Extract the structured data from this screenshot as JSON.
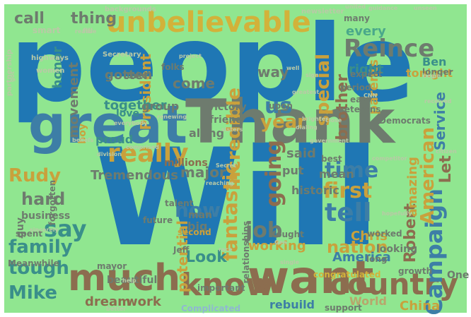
{
  "colors": {
    "background": "#90e690",
    "frame": "#ffffff",
    "blue": "#1f77b4",
    "steel": "#3d7ea6",
    "teal": "#3a8f8a",
    "sea": "#4aa88a",
    "brown": "#8c6d4f",
    "gold": "#d2b23a",
    "ochre": "#c9a13c",
    "grey": "#6e7b6e",
    "tan": "#b8a66c",
    "pale": "#b9c9a6",
    "sky": "#8fb8d0"
  },
  "words": [
    {
      "text": "people",
      "color": "blue"
    },
    {
      "text": "Will",
      "color": "blue"
    },
    {
      "text": "Thank",
      "color": "grey"
    },
    {
      "text": "great",
      "color": "steel"
    },
    {
      "text": "unbelievable",
      "color": "gold"
    },
    {
      "text": "want",
      "color": "brown"
    },
    {
      "text": "much",
      "color": "brown"
    },
    {
      "text": "country",
      "color": "brown"
    },
    {
      "text": "know",
      "color": "brown"
    },
    {
      "text": "Reince",
      "color": "grey"
    },
    {
      "text": "really",
      "color": "ochre"
    },
    {
      "text": "going",
      "color": "brown"
    },
    {
      "text": "tell",
      "color": "steel"
    },
    {
      "text": "time",
      "color": "steel"
    },
    {
      "text": "first",
      "color": "ochre"
    },
    {
      "text": "job",
      "color": "grey"
    },
    {
      "text": "say",
      "color": "teal"
    },
    {
      "text": "family",
      "color": "teal"
    },
    {
      "text": "tough",
      "color": "teal"
    },
    {
      "text": "Mike",
      "color": "teal"
    },
    {
      "text": "hard",
      "color": "grey"
    },
    {
      "text": "us",
      "color": "steel"
    },
    {
      "text": "now",
      "color": "steel"
    },
    {
      "text": "Rudy",
      "color": "ochre"
    },
    {
      "text": "year",
      "color": "ochre"
    },
    {
      "text": "fantastic",
      "color": "ochre"
    },
    {
      "text": "incredible",
      "color": "ochre"
    },
    {
      "text": "Campaign",
      "color": "steel"
    },
    {
      "text": "American",
      "color": "ochre"
    },
    {
      "text": "Robert",
      "color": "brown"
    },
    {
      "text": "nation",
      "color": "ochre"
    },
    {
      "text": "World",
      "color": "tan"
    },
    {
      "text": "China",
      "color": "ochre"
    },
    {
      "text": "Look",
      "color": "teal"
    },
    {
      "text": "America",
      "color": "steel"
    },
    {
      "text": "special",
      "color": "ochre"
    },
    {
      "text": "Service",
      "color": "steel"
    },
    {
      "text": "Let",
      "color": "brown"
    },
    {
      "text": "amazing",
      "color": "ochre"
    },
    {
      "text": "brother",
      "color": "brown"
    },
    {
      "text": "movement",
      "color": "grey"
    },
    {
      "text": "President",
      "color": "ochre"
    },
    {
      "text": "honor",
      "color": "teal"
    },
    {
      "text": "thing",
      "color": "grey"
    },
    {
      "text": "call",
      "color": "grey"
    },
    {
      "text": "come",
      "color": "grey"
    },
    {
      "text": "gotten",
      "color": "grey"
    },
    {
      "text": "way",
      "color": "grey"
    },
    {
      "text": "every",
      "color": "sea"
    },
    {
      "text": "parents",
      "color": "ochre"
    },
    {
      "text": "tonight",
      "color": "ochre"
    },
    {
      "text": "right",
      "color": "teal"
    },
    {
      "text": "Ben",
      "color": "teal"
    },
    {
      "text": "together",
      "color": "teal"
    },
    {
      "text": "major",
      "color": "grey"
    },
    {
      "text": "Tremendous",
      "color": "grey"
    },
    {
      "text": "said",
      "color": "grey"
    },
    {
      "text": "mean",
      "color": "grey"
    },
    {
      "text": "put",
      "color": "grey"
    },
    {
      "text": "historic",
      "color": "grey"
    },
    {
      "text": "Chris",
      "color": "ochre"
    },
    {
      "text": "potential",
      "color": "ochre"
    },
    {
      "text": "working",
      "color": "ochre"
    },
    {
      "text": "dream",
      "color": "brown"
    },
    {
      "text": "work",
      "color": "brown"
    },
    {
      "text": "rebuild",
      "color": "steel"
    },
    {
      "text": "Complicated",
      "color": "sky"
    },
    {
      "text": "business",
      "color": "grey"
    },
    {
      "text": "beautiful",
      "color": "grey"
    },
    {
      "text": "Meanwhile",
      "color": "grey"
    },
    {
      "text": "congratulated",
      "color": "gold"
    },
    {
      "text": "growth",
      "color": "grey"
    },
    {
      "text": "One",
      "color": "grey"
    },
    {
      "text": "important",
      "color": "grey"
    },
    {
      "text": "support",
      "color": "grey"
    },
    {
      "text": "proud",
      "color": "teal"
    },
    {
      "text": "love",
      "color": "teal"
    },
    {
      "text": "group",
      "color": "grey"
    },
    {
      "text": "victory",
      "color": "grey"
    },
    {
      "text": "friend",
      "color": "grey"
    },
    {
      "text": "along",
      "color": "grey"
    },
    {
      "text": "Democrats",
      "color": "grey"
    },
    {
      "text": "veterans",
      "color": "grey"
    },
    {
      "text": "period",
      "color": "grey"
    },
    {
      "text": "expect",
      "color": "grey"
    },
    {
      "text": "easy",
      "color": "grey"
    },
    {
      "text": "upon",
      "color": "grey"
    },
    {
      "text": "best",
      "color": "grey"
    },
    {
      "text": "looking",
      "color": "grey"
    },
    {
      "text": "long",
      "color": "grey"
    },
    {
      "text": "mayor",
      "color": "grey"
    },
    {
      "text": "Jeff",
      "color": "grey"
    },
    {
      "text": "big",
      "color": "grey"
    },
    {
      "text": "man",
      "color": "grey"
    },
    {
      "text": "millions",
      "color": "brown"
    },
    {
      "text": "talent",
      "color": "grey"
    },
    {
      "text": "future",
      "color": "grey"
    },
    {
      "text": "second",
      "color": "ochre"
    },
    {
      "text": "guy",
      "color": "grey"
    },
    {
      "text": "spent",
      "color": "grey"
    },
    {
      "text": "forgotten",
      "color": "grey"
    },
    {
      "text": "worked",
      "color": "grey"
    },
    {
      "text": "fought",
      "color": "grey"
    },
    {
      "text": "relationships",
      "color": "grey"
    },
    {
      "text": "longer",
      "color": "grey"
    },
    {
      "text": "many",
      "color": "grey"
    },
    {
      "text": "folks",
      "color": "grey"
    },
    {
      "text": "take",
      "color": "grey"
    },
    {
      "text": "boy",
      "color": "ochre"
    },
    {
      "text": "smart",
      "color": "pale"
    },
    {
      "text": "Secretary",
      "color": "pale"
    },
    {
      "text": "backgrounds",
      "color": "pale"
    },
    {
      "text": "newsletter",
      "color": "pale"
    },
    {
      "text": "highways",
      "color": "pale"
    },
    {
      "text": "women",
      "color": "pale"
    },
    {
      "text": "fill",
      "color": "pale"
    },
    {
      "text": "partnership",
      "color": "pale"
    },
    {
      "text": "sincerely",
      "color": "pale"
    },
    {
      "text": "received",
      "color": "pale"
    },
    {
      "text": "begin",
      "color": "pale"
    },
    {
      "text": "citizen",
      "color": "pale"
    },
    {
      "text": "competitor",
      "color": "pale"
    },
    {
      "text": "Gen",
      "color": "pale"
    },
    {
      "text": "single",
      "color": "pale"
    },
    {
      "text": "hopefully",
      "color": "pale"
    },
    {
      "text": "Secret",
      "color": "pale"
    },
    {
      "text": "comprised",
      "color": "pale"
    },
    {
      "text": "reaching",
      "color": "pale"
    },
    {
      "text": "division",
      "color": "pale"
    },
    {
      "text": "beliefs",
      "color": "pale"
    },
    {
      "text": "government",
      "color": "pale"
    },
    {
      "text": "dialing",
      "color": "pale"
    },
    {
      "text": "close",
      "color": "pale"
    },
    {
      "text": "CNN",
      "color": "pale"
    },
    {
      "text": "sign",
      "color": "pale"
    },
    {
      "text": "guidance",
      "color": "pale"
    },
    {
      "text": "united",
      "color": "pale"
    },
    {
      "text": "realize",
      "color": "pale"
    },
    {
      "text": "project",
      "color": "pale"
    },
    {
      "text": "sisters",
      "color": "pale"
    },
    {
      "text": "renewing",
      "color": "pale"
    },
    {
      "text": "everybody",
      "color": "pale"
    },
    {
      "text": "got",
      "color": "pale"
    },
    {
      "text": "race",
      "color": "pale"
    },
    {
      "text": "better",
      "color": "pale"
    },
    {
      "text": "help",
      "color": "pale"
    },
    {
      "text": "greatest",
      "color": "pale"
    },
    {
      "text": "well",
      "color": "pale"
    },
    {
      "text": "brighter",
      "color": "pale"
    },
    {
      "text": "unseen",
      "color": "pale"
    }
  ]
}
